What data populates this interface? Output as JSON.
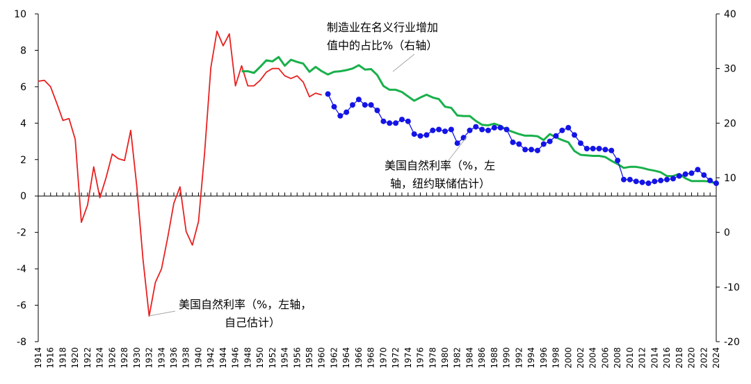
{
  "chart_data": {
    "type": "line",
    "title": "",
    "xlabel": "",
    "ylabel": "",
    "y_left": {
      "lim": [
        -8,
        10
      ],
      "ticks": [
        -8,
        -6,
        -4,
        -2,
        0,
        2,
        4,
        6,
        8,
        10
      ]
    },
    "y_right": {
      "lim": [
        -20,
        40
      ],
      "ticks": [
        -20,
        -10,
        0,
        10,
        20,
        30,
        40
      ]
    },
    "x_tick_years": [
      1914,
      1916,
      1918,
      1920,
      1922,
      1924,
      1926,
      1928,
      1930,
      1932,
      1934,
      1936,
      1938,
      1940,
      1942,
      1944,
      1946,
      1948,
      1950,
      1952,
      1954,
      1956,
      1958,
      1960,
      1962,
      1964,
      1966,
      1968,
      1970,
      1972,
      1974,
      1976,
      1978,
      1980,
      1982,
      1984,
      1986,
      1988,
      1990,
      1992,
      1994,
      1996,
      1998,
      2000,
      2002,
      2004,
      2006,
      2008,
      2010,
      2012,
      2014,
      2016,
      2018,
      2020,
      2022,
      2024
    ],
    "colors": {
      "red": "#e8201f",
      "green": "#19b04b",
      "blue": "#1414e6"
    },
    "series": [
      {
        "axis": "left",
        "color": "red",
        "marker": false,
        "x": [
          1914,
          1915,
          1916,
          1917,
          1918,
          1919,
          1920,
          1921,
          1922,
          1923,
          1924,
          1925,
          1926,
          1927,
          1928,
          1929,
          1930,
          1931,
          1932,
          1933,
          1934,
          1935,
          1936,
          1937,
          1938,
          1939,
          1940,
          1941,
          1942,
          1943,
          1944,
          1945,
          1946,
          1947,
          1948,
          1949,
          1950,
          1951,
          1952,
          1953,
          1954,
          1955,
          1956,
          1957,
          1958,
          1959,
          1960
        ],
        "values": [
          6.3,
          6.35,
          6.0,
          5.1,
          4.15,
          4.25,
          3.1,
          -1.45,
          -0.5,
          1.6,
          -0.1,
          1.0,
          2.3,
          2.05,
          1.95,
          3.6,
          0.5,
          -3.5,
          -6.6,
          -4.75,
          -4.0,
          -2.3,
          -0.4,
          0.5,
          -1.95,
          -2.7,
          -1.4,
          2.4,
          7.05,
          9.05,
          8.25,
          8.9,
          6.05,
          7.15,
          6.05,
          6.05,
          6.35,
          6.8,
          7.0,
          7.0,
          6.6,
          6.45,
          6.6,
          6.25,
          5.45,
          5.65,
          5.55
        ]
      },
      {
        "axis": "right",
        "color": "green",
        "marker": false,
        "x": [
          1947,
          1948,
          1949,
          1950,
          1951,
          1952,
          1953,
          1954,
          1955,
          1956,
          1957,
          1958,
          1959,
          1960,
          1961,
          1962,
          1963,
          1964,
          1965,
          1966,
          1967,
          1968,
          1969,
          1970,
          1971,
          1972,
          1973,
          1974,
          1975,
          1976,
          1977,
          1978,
          1979,
          1980,
          1981,
          1982,
          1983,
          1984,
          1985,
          1986,
          1987,
          1988,
          1989,
          1990,
          1991,
          1992,
          1993,
          1994,
          1995,
          1996,
          1997,
          1998,
          1999,
          2000,
          2001,
          2002,
          2003,
          2004,
          2005,
          2006,
          2007,
          2008,
          2009,
          2010,
          2011,
          2012,
          2013,
          2014,
          2015,
          2016,
          2017,
          2018,
          2019,
          2020,
          2021,
          2022,
          2023,
          2024
        ],
        "values": [
          29.5,
          29.5,
          29.2,
          30.3,
          31.5,
          31.3,
          32.1,
          30.5,
          31.6,
          31.2,
          30.9,
          29.4,
          30.3,
          29.5,
          28.9,
          29.4,
          29.5,
          29.7,
          30.0,
          30.6,
          29.8,
          29.9,
          28.8,
          26.8,
          26.1,
          26.1,
          25.7,
          24.9,
          24.1,
          24.7,
          25.2,
          24.7,
          24.4,
          23.0,
          22.8,
          21.4,
          21.3,
          21.3,
          20.4,
          19.7,
          19.6,
          19.9,
          19.5,
          18.8,
          18.4,
          18.0,
          17.7,
          17.7,
          17.6,
          16.9,
          18.0,
          17.4,
          16.9,
          16.5,
          14.9,
          14.2,
          14.1,
          14.0,
          14.0,
          13.8,
          13.1,
          12.5,
          11.8,
          12.0,
          12.0,
          11.8,
          11.5,
          11.3,
          11.0,
          10.3,
          10.3,
          10.7,
          9.9,
          9.4,
          9.4,
          9.4,
          9.3,
          8.9
        ]
      },
      {
        "axis": "left",
        "color": "blue",
        "marker": true,
        "x": [
          1961,
          1962,
          1963,
          1964,
          1965,
          1966,
          1967,
          1968,
          1969,
          1970,
          1971,
          1972,
          1973,
          1974,
          1975,
          1976,
          1977,
          1978,
          1979,
          1980,
          1981,
          1982,
          1983,
          1984,
          1985,
          1986,
          1987,
          1988,
          1989,
          1990,
          1991,
          1992,
          1993,
          1994,
          1995,
          1996,
          1997,
          1998,
          1999,
          2000,
          2001,
          2002,
          2003,
          2004,
          2005,
          2006,
          2007,
          2008,
          2009,
          2010,
          2011,
          2012,
          2013,
          2014,
          2015,
          2016,
          2017,
          2018,
          2019,
          2020,
          2021,
          2022,
          2023,
          2024
        ],
        "values": [
          5.6,
          4.9,
          4.4,
          4.6,
          5.0,
          5.3,
          5.0,
          5.0,
          4.7,
          4.1,
          4.0,
          4.0,
          4.2,
          4.1,
          3.4,
          3.3,
          3.35,
          3.6,
          3.65,
          3.55,
          3.65,
          2.9,
          3.2,
          3.6,
          3.8,
          3.65,
          3.6,
          3.75,
          3.75,
          3.65,
          2.95,
          2.85,
          2.55,
          2.55,
          2.5,
          2.85,
          3.0,
          3.3,
          3.6,
          3.75,
          3.35,
          2.9,
          2.6,
          2.6,
          2.6,
          2.55,
          2.5,
          1.95,
          0.9,
          0.9,
          0.8,
          0.75,
          0.7,
          0.8,
          0.85,
          0.9,
          0.95,
          1.1,
          1.2,
          1.25,
          1.45,
          1.15,
          0.85,
          0.7
        ]
      }
    ],
    "annotations": [
      {
        "id": "green",
        "lines": [
          "制造业在名义行业增加",
          "值中的占比%（右轴）"
        ]
      },
      {
        "id": "blue",
        "lines": [
          "美国自然利率（%，左",
          "轴，纽约联储估计）"
        ]
      },
      {
        "id": "red",
        "lines": [
          "美国自然利率（%，左轴，",
          "自己估计）"
        ]
      }
    ]
  }
}
